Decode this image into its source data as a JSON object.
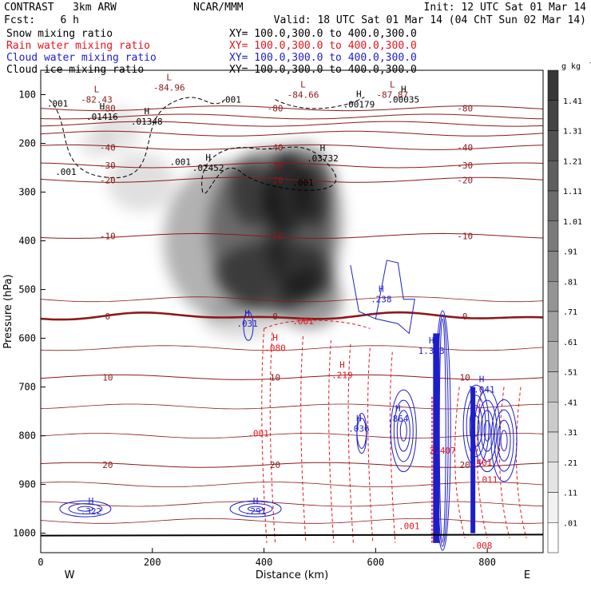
{
  "header": {
    "model": "CONTRAST   3km ARW",
    "center": "NCAR/MMM",
    "init": "Init: 12 UTC Sat 01 Mar 14",
    "fcst": "Fcst:    6 h",
    "valid": "Valid: 18 UTC Sat 01 Mar 14 (04 ChT Sun 02 Mar 14)",
    "fields": [
      {
        "label": "Snow mixing ratio",
        "xy": "XY= 100.0,300.0 to 400.0,300.0",
        "color": "#000000"
      },
      {
        "label": "Rain water mixing ratio",
        "xy": "XY= 100.0,300.0 to 400.0,300.0",
        "color": "#e8141c"
      },
      {
        "label": "Cloud water mixing ratio",
        "xy": "XY= 100.0,300.0 to 400.0,300.0",
        "color": "#1e1ec8"
      },
      {
        "label": "Cloud ice mixing ratio",
        "xy": "XY= 100.0,300.0 to 400.0,300.0",
        "color": "#000000"
      }
    ]
  },
  "chart_data": {
    "type": "heatmap",
    "xlabel": "Distance (km)",
    "ylabel": "Pressure (hPa)",
    "xlim": [
      0,
      900
    ],
    "ylim": [
      1040,
      50
    ],
    "xticks": [
      0,
      200,
      400,
      600,
      800
    ],
    "yticks": [
      100,
      200,
      300,
      400,
      500,
      600,
      700,
      800,
      900,
      1000
    ],
    "x_end_labels": {
      "left": "W",
      "right": "E"
    },
    "colorbar": {
      "unit": "g kg",
      "unit_exp": "-1",
      "labels": [
        ".01",
        ".11",
        ".21",
        ".31",
        ".41",
        ".51",
        ".61",
        ".71",
        ".81",
        ".91",
        "1.01",
        "1.11",
        "1.21",
        "1.31",
        "1.41"
      ]
    },
    "temperature_contours": [
      {
        "value": -80,
        "p": 128,
        "label": "-80"
      },
      {
        "value": -70,
        "p": 145,
        "label": ""
      },
      {
        "value": -60,
        "p": 160,
        "label": ""
      },
      {
        "value": -50,
        "p": 180,
        "label": ""
      },
      {
        "value": -40,
        "p": 208,
        "label": "-40"
      },
      {
        "value": -30,
        "p": 245,
        "label": "-30"
      },
      {
        "value": -20,
        "p": 275,
        "label": "-20"
      },
      {
        "value": -10,
        "p": 390,
        "label": "-10"
      },
      {
        "value": 0,
        "p": 555,
        "label": "0"
      },
      {
        "value": 10,
        "p": 680,
        "label": "10"
      },
      {
        "value": 20,
        "p": 860,
        "label": "20"
      }
    ],
    "extrema_labels": [
      {
        "kind": "L",
        "value": "-84.96",
        "x": 230,
        "p": 80,
        "color": "#8b1a1a"
      },
      {
        "kind": "L",
        "value": "-82.43",
        "x": 100,
        "p": 105,
        "color": "#8b1a1a"
      },
      {
        "kind": "L",
        "value": "-84.66",
        "x": 470,
        "p": 95,
        "color": "#8b1a1a"
      },
      {
        "kind": "L",
        "value": "-87.87",
        "x": 630,
        "p": 95,
        "color": "#8b1a1a"
      },
      {
        "kind": "H",
        "value": ".01416",
        "x": 110,
        "p": 140,
        "color": "#000000"
      },
      {
        "kind": "H",
        "value": ".01348",
        "x": 190,
        "p": 150,
        "color": "#000000"
      },
      {
        "kind": "H",
        "value": ".00179",
        "x": 570,
        "p": 115,
        "color": "#000000"
      },
      {
        "kind": "H",
        "value": ".00035",
        "x": 650,
        "p": 105,
        "color": "#000000"
      },
      {
        "kind": "H",
        "value": ".02452",
        "x": 300,
        "p": 245,
        "color": "#000000"
      },
      {
        "kind": "H",
        "value": ".03732",
        "x": 505,
        "p": 225,
        "color": "#000000"
      },
      {
        "kind": "H",
        "value": ".031",
        "x": 370,
        "p": 565,
        "color": "#1e1ec8"
      },
      {
        "kind": "H",
        "value": ".238",
        "x": 610,
        "p": 515,
        "color": "#1e1ec8"
      },
      {
        "kind": "H",
        "value": "1.323",
        "x": 700,
        "p": 620,
        "color": "#1e1ec8"
      },
      {
        "kind": "H",
        "value": ".036",
        "x": 570,
        "p": 780,
        "color": "#1e1ec8"
      },
      {
        "kind": "H",
        "value": ".864",
        "x": 640,
        "p": 760,
        "color": "#1e1ec8"
      },
      {
        "kind": "H",
        "value": "1.041",
        "x": 790,
        "p": 700,
        "color": "#1e1ec8"
      },
      {
        "kind": "H",
        "value": ".080",
        "x": 420,
        "p": 615,
        "color": "#e8141c"
      },
      {
        "kind": "H",
        "value": ".219",
        "x": 540,
        "p": 670,
        "color": "#e8141c"
      },
      {
        "kind": "H",
        "value": ".322",
        "x": 90,
        "p": 950,
        "color": "#1e1ec8"
      },
      {
        "kind": "H",
        "value": ".291",
        "x": 385,
        "p": 950,
        "color": "#1e1ec8"
      }
    ],
    "value_labels": [
      {
        "value": ".001",
        "x": 30,
        "p": 118,
        "color": "#000000"
      },
      {
        "value": ".001",
        "x": 340,
        "p": 110,
        "color": "#000000"
      },
      {
        "value": ".001",
        "x": 45,
        "p": 258,
        "color": "#000000"
      },
      {
        "value": ".001",
        "x": 250,
        "p": 238,
        "color": "#000000"
      },
      {
        "value": ".001",
        "x": 470,
        "p": 280,
        "color": "#000000"
      },
      {
        "value": ".001",
        "x": 470,
        "p": 565,
        "color": "#e8141c"
      },
      {
        "value": ".001",
        "x": 390,
        "p": 795,
        "color": "#e8141c"
      },
      {
        "value": ".001",
        "x": 660,
        "p": 985,
        "color": "#e8141c"
      },
      {
        "value": ".008",
        "x": 790,
        "p": 1025,
        "color": "#e8141c"
      },
      {
        "value": ".011",
        "x": 800,
        "p": 890,
        "color": "#e8141c"
      },
      {
        "value": ".401",
        "x": 790,
        "p": 855,
        "color": "#e8141c"
      },
      {
        "value": "2.407",
        "x": 720,
        "p": 830,
        "color": "#e8141c"
      }
    ]
  }
}
